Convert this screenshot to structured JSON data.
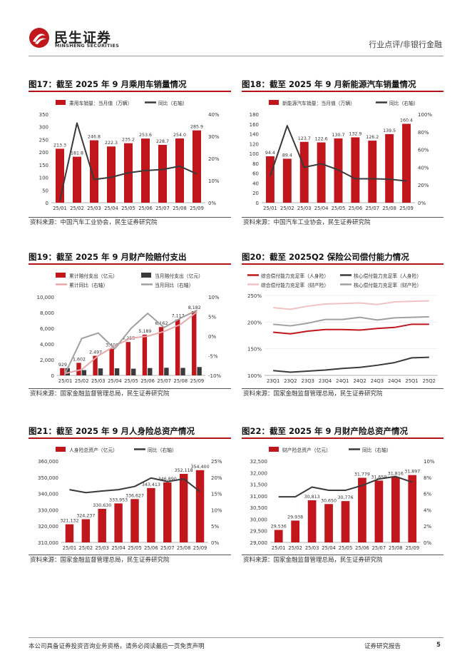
{
  "header": {
    "brand_cn": "民生证券",
    "brand_en": "MINSHENG SECURITIES",
    "report_type": "行业点评/非银行金融"
  },
  "footer": {
    "disclaimer": "本公司具备证券投资咨询业务资格，请务必阅读最后一页免责声明",
    "report_label": "证券研究报告",
    "page_number": "5"
  },
  "colors": {
    "red": "#c0161c",
    "dark": "#3a3a3a",
    "pink": "#e8a9ab",
    "gray": "#a0a0a0",
    "brand": "#b31218"
  },
  "charts": [
    {
      "id": "fig17",
      "title": "图17：截至 2025 年 9 月乘用车销量情况",
      "source": "资料来源：中国汽车工业协会，民生证券研究院",
      "chart_data": {
        "type": "bar",
        "categories": [
          "25/01",
          "25/02",
          "25/03",
          "25/04",
          "25/05",
          "25/06",
          "25/07",
          "25/08",
          "25/09"
        ],
        "bars": [
          {
            "name": "乘用车销量：当月值（万辆）",
            "values": [
              213.3,
              181.8,
              246.8,
              222.3,
              235.2,
              253.6,
              228.7,
              254.0,
              285.9
            ],
            "labels": [
              "213.3",
              "181.8",
              "246.8",
              "222.3",
              "235.2",
              "253.6",
              "228.7",
              "254.0",
              "285.9"
            ],
            "color": "#c0161c"
          }
        ],
        "lines": [
          {
            "name": "同比（右轴）",
            "values": [
              0.01,
              0.36,
              0.105,
              0.115,
              0.135,
              0.145,
              0.15,
              0.165,
              0.13
            ],
            "color": "#3a3a3a"
          }
        ],
        "left_ticks": [
          "350",
          "300",
          "250",
          "200",
          "150",
          "100",
          "50",
          "0"
        ],
        "left_range": [
          0,
          350
        ],
        "right_ticks": [
          "40%",
          "30%",
          "20%",
          "10%",
          "0%"
        ],
        "right_range": [
          0,
          0.4
        ]
      }
    },
    {
      "id": "fig18",
      "title": "图18：截至 2025 年 9 月新能源汽车销量情况",
      "source": "资料来源：中国汽车工业协会，民生证券研究院",
      "chart_data": {
        "type": "bar",
        "categories": [
          "25/01",
          "25/02",
          "25/03",
          "25/04",
          "25/05",
          "25/06",
          "25/07",
          "25/08",
          "25/09"
        ],
        "bars": [
          {
            "name": "新能源汽车销量：当月值（万辆）",
            "values": [
              94.4,
              89.4,
              123.7,
              122.6,
              130.7,
              132.9,
              126.2,
              139.5,
              160.4
            ],
            "labels": [
              "94.4",
              "89.4",
              "123.7",
              "122.6",
              "130.7",
              "132.9",
              "126.2",
              "139.5",
              "160.4"
            ],
            "color": "#c0161c"
          }
        ],
        "lines": [
          {
            "name": "同比（右轴）",
            "values": [
              0.3,
              0.87,
              0.4,
              0.44,
              0.37,
              0.27,
              0.27,
              0.265,
              0.245
            ],
            "color": "#3a3a3a"
          }
        ],
        "left_ticks": [
          "180",
          "160",
          "140",
          "120",
          "100",
          "80",
          "60",
          "40",
          "20",
          "0"
        ],
        "left_range": [
          0,
          180
        ],
        "right_ticks": [
          "100%",
          "80%",
          "60%",
          "40%",
          "20%",
          "0%"
        ],
        "right_range": [
          0,
          1.0
        ]
      }
    },
    {
      "id": "fig19",
      "title": "图19：截至 2025 年 9 月财产险赔付支出",
      "source": "资料来源：国家金融监督管理总局，民生证券研究院",
      "chart_data": {
        "type": "bar",
        "categories": [
          "25/01",
          "25/02",
          "25/03",
          "25/04",
          "25/05",
          "25/06",
          "25/07",
          "25/08",
          "25/09"
        ],
        "bars": [
          {
            "name": "累计赔付支出（亿元）",
            "values": [
              929,
              1602,
              2497,
              3400,
              4255,
              5189,
              6162,
              7117,
              8182
            ],
            "labels": [
              "929",
              "1,602",
              "2,497",
              "3,400",
              "4,255",
              "5,189",
              "6,162",
              "7,117",
              "8,182"
            ],
            "color": "#c0161c"
          },
          {
            "name": "当月赔付支出（亿元）",
            "values": [
              929,
              673,
              895,
              903,
              855,
              934,
              973,
              955,
              1065
            ],
            "color": "#3a3a3a"
          }
        ],
        "lines": [
          {
            "name": "累计同比（右轴）",
            "values": [
              -0.095,
              -0.085,
              -0.05,
              -0.025,
              -0.005,
              0.0,
              0.012,
              0.03,
              0.062
            ],
            "color": "#e8a9ab"
          },
          {
            "name": "当月同比（右轴）",
            "values": [
              -0.095,
              -0.006,
              0.008,
              -0.032,
              0.02,
              0.058,
              0.022,
              0.046,
              0.066
            ],
            "color": "#a0a0a0"
          }
        ],
        "left_ticks": [
          "10,000",
          "8,000",
          "6,000",
          "4,000",
          "2,000",
          "0"
        ],
        "left_range": [
          0,
          10000
        ],
        "right_ticks": [
          "10%",
          "5%",
          "0%",
          "-5%",
          "-10%"
        ],
        "right_range": [
          -0.1,
          0.1
        ]
      }
    },
    {
      "id": "fig20",
      "title": "图20：截至 2025Q2 保险公司偿付能力情况",
      "source": "资料来源：国家金融监督管理总局，民生证券研究院",
      "chart_data": {
        "type": "line",
        "categories": [
          "23Q1",
          "23Q2",
          "23Q3",
          "23Q4",
          "24Q1",
          "24Q2",
          "24Q3",
          "24Q4",
          "25Q1",
          "25Q2"
        ],
        "lines": [
          {
            "name": "综合偿付能力充足率（人身险）",
            "values": [
              1.81,
              1.78,
              1.83,
              1.86,
              1.86,
              1.85,
              1.88,
              1.9,
              1.96,
              1.96
            ],
            "color": "#c0161c"
          },
          {
            "name": "核心偿付能力充足率（人身险）",
            "values": [
              1.09,
              1.06,
              1.08,
              1.1,
              1.13,
              1.15,
              1.19,
              1.24,
              1.33,
              1.34
            ],
            "color": "#3a3a3a"
          },
          {
            "name": "综合偿付能力充足率（财产险）",
            "values": [
              2.27,
              2.24,
              2.3,
              2.34,
              2.35,
              2.36,
              2.33,
              2.38,
              2.39,
              2.4
            ],
            "color": "#f0c2c4"
          },
          {
            "name": "核心偿付能力充足率（财产险）",
            "values": [
              1.96,
              1.93,
              1.98,
              2.05,
              2.05,
              2.09,
              2.04,
              2.08,
              2.09,
              2.1
            ],
            "color": "#a0a0a0"
          }
        ],
        "left_ticks": [
          "250%",
          "200%",
          "150%",
          "100%"
        ],
        "left_range": [
          1.0,
          2.5
        ]
      }
    },
    {
      "id": "fig21",
      "title": "图21：截至 2025 年 9 月人身险总资产情况",
      "source": "资料来源：国家金融监督管理总局，民生证券研究院",
      "chart_data": {
        "type": "bar",
        "categories": [
          "25/01",
          "25/02",
          "25/03",
          "25/04",
          "25/05",
          "25/06",
          "25/07",
          "25/08",
          "25/09"
        ],
        "bars": [
          {
            "name": "人身险总资产（亿元）",
            "values": [
              321132,
              324237,
              330630,
              333953,
              336627,
              343413,
              346890,
              352118,
              354400
            ],
            "labels": [
              "321,132",
              "324,237",
              "330,630",
              "333,953",
              "336,627",
              "343,413",
              "346,890",
              "352,118",
              "354,400"
            ],
            "color": "#c0161c"
          }
        ],
        "lines": [
          {
            "name": "同比（右轴）",
            "values": [
              0.162,
              0.153,
              0.158,
              0.162,
              0.172,
              0.198,
              0.187,
              0.195,
              0.156
            ],
            "color": "#3a3a3a"
          }
        ],
        "left_ticks": [
          "360,000",
          "350,000",
          "340,000",
          "330,000",
          "320,000",
          "310,000"
        ],
        "left_range": [
          310000,
          360000
        ],
        "right_ticks": [
          "25%",
          "20%",
          "15%",
          "10%",
          "5%",
          "0%"
        ],
        "right_range": [
          0,
          0.25
        ]
      }
    },
    {
      "id": "fig22",
      "title": "图22：截至 2025 年 9 月财产险总资产情况",
      "source": "资料来源：国家金融监督管理总局，民生证券研究院",
      "chart_data": {
        "type": "bar",
        "categories": [
          "25/01",
          "25/02",
          "25/03",
          "25/04",
          "25/05",
          "25/06",
          "25/07",
          "25/08",
          "25/09"
        ],
        "bars": [
          {
            "name": "财产险总资产（亿元）",
            "values": [
              29536,
              29938,
              30813,
              30650,
              30776,
              31779,
              31659,
              31816,
              31897
            ],
            "labels": [
              "29,536",
              "29,938",
              "30,813",
              "30,650",
              "30,776",
              "31,779",
              "31,659",
              "31,816",
              "31,897"
            ],
            "color": "#c0161c"
          }
        ],
        "lines": [
          {
            "name": "同比（右轴）",
            "values": [
              0.056,
              0.056,
              0.068,
              0.064,
              0.064,
              0.07,
              0.078,
              0.081,
              0.074
            ],
            "color": "#3a3a3a"
          }
        ],
        "left_ticks": [
          "32,500",
          "32,000",
          "31,500",
          "31,000",
          "30,500",
          "30,000",
          "29,500",
          "29,000"
        ],
        "left_range": [
          29000,
          32500
        ],
        "right_ticks": [
          "10%",
          "8%",
          "6%",
          "4%",
          "2%",
          "0%"
        ],
        "right_range": [
          0,
          0.1
        ]
      }
    }
  ]
}
